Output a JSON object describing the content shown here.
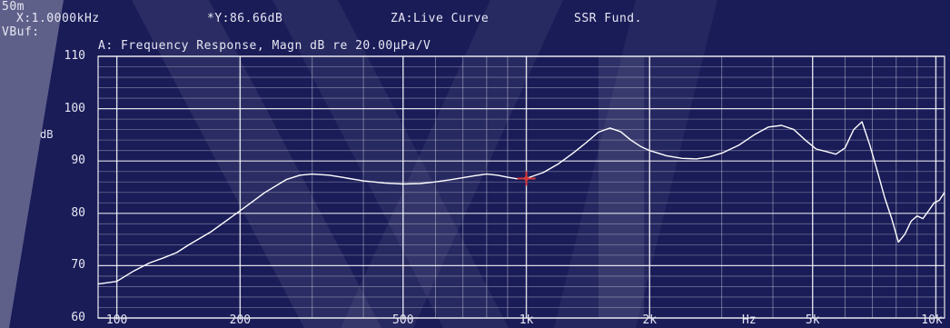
{
  "header": {
    "line1": "50m",
    "x_readout": "X:1.0000kHz",
    "y_readout": "*Y:86.66dB",
    "za_label": "ZA:Live Curve",
    "ssr_label": "SSR Fund.",
    "line3": "VBuf:"
  },
  "colors": {
    "background": "#1a1c58",
    "grid": "#ffffff",
    "curve": "#ffffff",
    "cursor": "#d83a3a"
  },
  "chart_data": {
    "type": "line",
    "title": "A: Frequency Response, Magn dB re 20.00µPa/V",
    "ylabel": "dB",
    "xlabel": "Hz",
    "x_scale": "log",
    "xlim": [
      90,
      10500
    ],
    "ylim": [
      60,
      110
    ],
    "yticks": [
      110,
      100,
      90,
      80,
      70,
      60
    ],
    "xticks": [
      {
        "value": 100,
        "label": "100"
      },
      {
        "value": 200,
        "label": "200"
      },
      {
        "value": 500,
        "label": "500"
      },
      {
        "value": 1000,
        "label": "1k"
      },
      {
        "value": 2000,
        "label": "2k"
      },
      {
        "value": 3500,
        "label": "Hz"
      },
      {
        "value": 5000,
        "label": "5k"
      },
      {
        "value": 10000,
        "label": "10k"
      }
    ],
    "grid": true,
    "cursor": {
      "x": 1000,
      "y": 86.66
    },
    "series": [
      {
        "x": [
          90,
          100,
          110,
          120,
          130,
          140,
          150,
          170,
          200,
          230,
          260,
          280,
          300,
          330,
          360,
          400,
          450,
          500,
          550,
          600,
          650,
          700,
          750,
          800,
          850,
          900,
          950,
          1000,
          1100,
          1200,
          1300,
          1400,
          1500,
          1600,
          1700,
          1800,
          1900,
          2000,
          2200,
          2400,
          2600,
          2800,
          3000,
          3300,
          3600,
          3900,
          4200,
          4500,
          4800,
          5100,
          5400,
          5700,
          6000,
          6300,
          6600,
          6900,
          7200,
          7500,
          7800,
          8100,
          8400,
          8700,
          9000,
          9300,
          9600,
          9900,
          10200,
          10500
        ],
        "y": [
          66.5,
          67.0,
          69.0,
          70.5,
          71.5,
          72.5,
          74.0,
          76.5,
          80.5,
          84.0,
          86.5,
          87.3,
          87.5,
          87.3,
          86.8,
          86.2,
          85.8,
          85.6,
          85.7,
          86.0,
          86.4,
          86.8,
          87.2,
          87.5,
          87.3,
          86.9,
          86.6,
          86.66,
          87.8,
          89.5,
          91.5,
          93.5,
          95.5,
          96.3,
          95.6,
          94.0,
          92.8,
          92.0,
          91.0,
          90.5,
          90.4,
          90.8,
          91.5,
          93.0,
          95.0,
          96.5,
          96.8,
          96.0,
          94.0,
          92.3,
          91.8,
          91.3,
          92.5,
          96.0,
          97.5,
          93.0,
          88.0,
          83.0,
          79.0,
          74.5,
          76.0,
          78.5,
          79.5,
          79.0,
          80.5,
          82.0,
          82.5,
          84.0
        ]
      }
    ]
  }
}
